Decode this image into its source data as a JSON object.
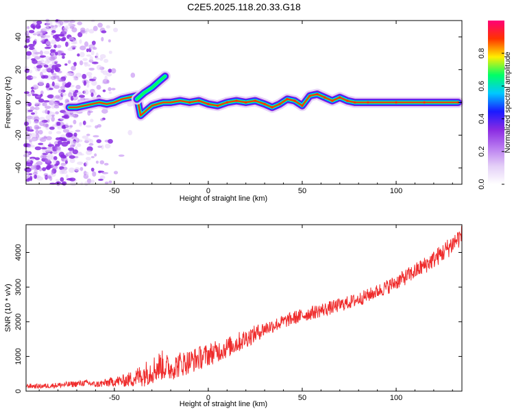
{
  "title": "C2E5.2025.118.20.33.G18",
  "colors": {
    "snr_line": "#ef2b2b",
    "frame": "#000000",
    "colormap": [
      "#ffffff",
      "#e4cff7",
      "#b97cf0",
      "#8a2be2",
      "#1a1aff",
      "#00c8ff",
      "#00ff66",
      "#ffee00",
      "#ff3300",
      "#ff0077"
    ]
  },
  "chart_data": [
    {
      "type": "heatmap",
      "title": "C2E5.2025.118.20.33.G18",
      "xlabel": "Height of straight line (km)",
      "ylabel": "Frequency (Hz)",
      "xlim": [
        -97,
        135
      ],
      "ylim": [
        -50,
        50
      ],
      "x_ticks": [
        -50,
        0,
        50,
        100
      ],
      "x_tick_labels": [
        "-50",
        "0",
        "50",
        "100"
      ],
      "y_ticks": [
        -40,
        -20,
        0,
        20,
        40
      ],
      "y_tick_labels": [
        "-40",
        "-20",
        "0",
        "20",
        "40"
      ],
      "colorbar": {
        "label": "Normalized spectral amplitude",
        "range": [
          0,
          1
        ],
        "ticks": [
          0.0,
          0.2,
          0.4,
          0.6,
          0.8
        ],
        "tick_labels": [
          "0.0",
          "0.2",
          "0.4",
          "0.6",
          "0.8"
        ]
      },
      "ridge": {
        "description_points": [
          [
            -74,
            -3
          ],
          [
            -70,
            -3
          ],
          [
            -66,
            -2
          ],
          [
            -62,
            -1
          ],
          [
            -58,
            0
          ],
          [
            -54,
            -1
          ],
          [
            -50,
            0
          ],
          [
            -46,
            2
          ],
          [
            -42,
            3
          ],
          [
            -38,
            4
          ],
          [
            -36,
            -8
          ],
          [
            -33,
            -5
          ],
          [
            -30,
            -2
          ],
          [
            -27,
            -1
          ],
          [
            -24,
            0
          ],
          [
            -20,
            0
          ],
          [
            -15,
            1
          ],
          [
            -10,
            0
          ],
          [
            -5,
            1
          ],
          [
            0,
            -1
          ],
          [
            5,
            -2
          ],
          [
            10,
            0
          ],
          [
            15,
            1
          ],
          [
            20,
            0
          ],
          [
            25,
            1
          ],
          [
            30,
            -1
          ],
          [
            34,
            -3
          ],
          [
            38,
            -1
          ],
          [
            42,
            2
          ],
          [
            46,
            1
          ],
          [
            50,
            -2
          ],
          [
            54,
            4
          ],
          [
            58,
            5
          ],
          [
            62,
            3
          ],
          [
            66,
            1
          ],
          [
            70,
            3
          ],
          [
            74,
            1
          ],
          [
            78,
            0
          ],
          [
            85,
            0
          ],
          [
            100,
            0
          ],
          [
            115,
            0
          ],
          [
            133,
            0
          ]
        ],
        "branch_points": [
          [
            -38,
            2
          ],
          [
            -34,
            6
          ],
          [
            -30,
            9
          ],
          [
            -26,
            13
          ],
          [
            -23,
            16
          ]
        ],
        "noise_region_x": [
          -97,
          -52
        ]
      }
    },
    {
      "type": "line",
      "xlabel": "Height of straight line (km)",
      "ylabel": "SNR (10 * v/v)",
      "xlim": [
        -97,
        135
      ],
      "ylim": [
        0,
        4800
      ],
      "x_ticks": [
        -50,
        0,
        50,
        100
      ],
      "x_tick_labels": [
        "-50",
        "0",
        "50",
        "100"
      ],
      "y_ticks": [
        0,
        1000,
        2000,
        3000,
        4000
      ],
      "y_tick_labels": [
        "0",
        "1000",
        "2000",
        "3000",
        "4000"
      ],
      "series": [
        {
          "x": [
            -97,
            -90,
            -80,
            -72,
            -65,
            -60,
            -55,
            -50,
            -45,
            -40,
            -35,
            -30,
            -25,
            -20,
            -15,
            -10,
            -5,
            0,
            5,
            10,
            15,
            20,
            25,
            30,
            35,
            40,
            45,
            50,
            55,
            60,
            65,
            70,
            75,
            80,
            85,
            90,
            95,
            100,
            105,
            110,
            115,
            120,
            125,
            130,
            135
          ],
          "y": [
            150,
            140,
            170,
            200,
            240,
            190,
            230,
            280,
            300,
            360,
            470,
            600,
            750,
            650,
            780,
            850,
            950,
            1050,
            1150,
            1250,
            1380,
            1520,
            1650,
            1800,
            1900,
            2000,
            2100,
            2180,
            2260,
            2330,
            2400,
            2480,
            2560,
            2650,
            2760,
            2880,
            3000,
            3140,
            3290,
            3450,
            3620,
            3800,
            4000,
            4250,
            4500
          ],
          "noise": [
            70,
            70,
            80,
            90,
            90,
            90,
            120,
            150,
            180,
            250,
            350,
            400,
            450,
            350,
            380,
            350,
            350,
            330,
            320,
            300,
            300,
            280,
            250,
            220,
            200,
            200,
            200,
            200,
            200,
            200,
            200,
            200,
            200,
            200,
            200,
            200,
            220,
            220,
            230,
            240,
            250,
            260,
            280,
            300,
            300
          ]
        }
      ]
    }
  ]
}
